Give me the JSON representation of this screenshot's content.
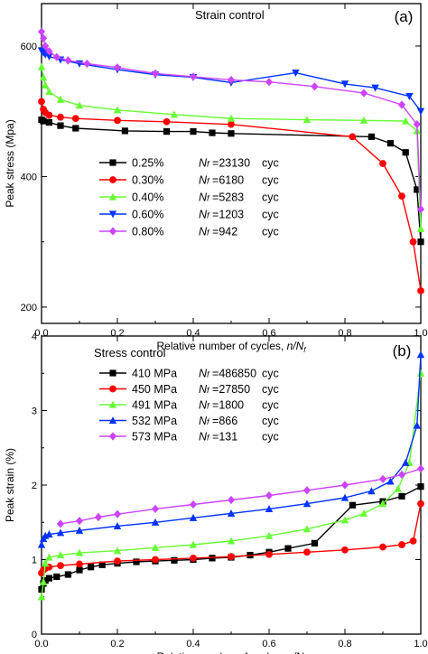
{
  "chart_data": [
    {
      "type": "line",
      "panel_label": "(a)",
      "title": "Strain control",
      "xlabel": "Relative number of cycles, n/N_f",
      "xlabel_main": "Relative number of cycles, ",
      "xlabel_italic": "n/N",
      "xlabel_sub": "f",
      "ylabel": "Peak stress (Mpa)",
      "xlim": [
        0,
        1.0
      ],
      "ylim": [
        175,
        665
      ],
      "x_ticks": [
        0.0,
        0.2,
        0.4,
        0.6,
        0.8,
        1.0
      ],
      "x_tick_labels": [
        "0.0",
        "0.2",
        "0.4",
        "0.6",
        "0.8",
        "1.0"
      ],
      "y_ticks": [
        200,
        400,
        600
      ],
      "y_tick_labels": [
        "200",
        "400",
        "600"
      ],
      "grid": false,
      "legend_position": "bottom-left",
      "series": [
        {
          "name": "0.25%",
          "nf_label": "Nf",
          "nf_value": "=23130",
          "unit": "cyc",
          "color": "#000000",
          "marker": "square",
          "x": [
            0.0,
            0.005,
            0.02,
            0.05,
            0.09,
            0.22,
            0.33,
            0.4,
            0.45,
            0.5,
            0.87,
            0.92,
            0.96,
            0.99,
            1.0
          ],
          "y": [
            487,
            485,
            483,
            478,
            474,
            470,
            469,
            469,
            467,
            466,
            461,
            451,
            437,
            380,
            300
          ]
        },
        {
          "name": "0.30%",
          "nf_label": "Nf",
          "nf_value": "=6180",
          "unit": "cyc",
          "color": "#ff0000",
          "marker": "circle",
          "x": [
            0.0,
            0.005,
            0.01,
            0.02,
            0.05,
            0.09,
            0.2,
            0.33,
            0.5,
            0.82,
            0.9,
            0.95,
            0.98,
            1.0
          ],
          "y": [
            515,
            503,
            498,
            494,
            491,
            489,
            486,
            484,
            480,
            461,
            420,
            370,
            300,
            225
          ]
        },
        {
          "name": "0.40%",
          "nf_label": "Nf",
          "nf_value": "=5283",
          "unit": "cyc",
          "color": "#66ff33",
          "marker": "triangle-up",
          "x": [
            0.0,
            0.005,
            0.01,
            0.02,
            0.05,
            0.1,
            0.2,
            0.35,
            0.5,
            0.7,
            0.85,
            0.96,
            0.99,
            1.0
          ],
          "y": [
            568,
            552,
            540,
            530,
            518,
            509,
            502,
            495,
            489,
            487,
            486,
            485,
            470,
            320
          ]
        },
        {
          "name": "0.60%",
          "nf_label": "Nf",
          "nf_value": "=1203",
          "unit": "cyc",
          "color": "#0033ff",
          "marker": "triangle-down",
          "x": [
            0.0,
            0.005,
            0.01,
            0.02,
            0.05,
            0.1,
            0.2,
            0.3,
            0.4,
            0.5,
            0.67,
            0.8,
            0.88,
            0.97,
            1.0
          ],
          "y": [
            593,
            590,
            587,
            584,
            579,
            573,
            564,
            556,
            552,
            544,
            559,
            542,
            536,
            523,
            500
          ]
        },
        {
          "name": "0.80%",
          "nf_label": "Nf",
          "nf_value": "=942",
          "unit": "cyc",
          "color": "#cc44ff",
          "marker": "diamond",
          "x": [
            0.0,
            0.005,
            0.01,
            0.02,
            0.04,
            0.07,
            0.12,
            0.2,
            0.3,
            0.4,
            0.5,
            0.6,
            0.72,
            0.85,
            0.95,
            0.99,
            1.0
          ],
          "y": [
            622,
            612,
            600,
            592,
            583,
            578,
            573,
            567,
            558,
            553,
            548,
            545,
            538,
            528,
            510,
            480,
            350
          ]
        }
      ]
    },
    {
      "type": "line",
      "panel_label": "(b)",
      "title": "Stress control",
      "xlabel": "Relative number of cycles, n/N_f",
      "xlabel_main": "Relative number of cycles, ",
      "xlabel_italic": "n/N",
      "xlabel_sub": "f",
      "ylabel": "Peak strain (%)",
      "xlim": [
        0,
        1.0
      ],
      "ylim": [
        0,
        4
      ],
      "x_ticks": [
        0.0,
        0.2,
        0.4,
        0.6,
        0.8,
        1.0
      ],
      "x_tick_labels": [
        "0.0",
        "0.2",
        "0.4",
        "0.6",
        "0.8",
        "1.0"
      ],
      "y_ticks": [
        0,
        1,
        2,
        3,
        4
      ],
      "y_tick_labels": [
        "0",
        "1",
        "2",
        "3",
        "4"
      ],
      "grid": false,
      "legend_position": "top-left",
      "series": [
        {
          "name": "410 MPa",
          "nf_label": "Nf",
          "nf_value": "=486850",
          "unit": "cyc",
          "color": "#000000",
          "marker": "square",
          "x": [
            0.0,
            0.005,
            0.01,
            0.02,
            0.04,
            0.07,
            0.1,
            0.13,
            0.16,
            0.2,
            0.25,
            0.3,
            0.35,
            0.4,
            0.45,
            0.5,
            0.55,
            0.6,
            0.65,
            0.72,
            0.82,
            0.9,
            0.95,
            1.0
          ],
          "y": [
            0.6,
            0.68,
            0.72,
            0.75,
            0.77,
            0.8,
            0.86,
            0.9,
            0.93,
            0.95,
            0.97,
            0.98,
            0.99,
            1.0,
            1.02,
            1.03,
            1.06,
            1.1,
            1.15,
            1.22,
            1.73,
            1.78,
            1.85,
            1.98
          ]
        },
        {
          "name": "450 MPa",
          "nf_label": "Nf",
          "nf_value": "=27850",
          "unit": "cyc",
          "color": "#ff0000",
          "marker": "circle",
          "x": [
            0.0,
            0.005,
            0.01,
            0.02,
            0.05,
            0.1,
            0.2,
            0.3,
            0.4,
            0.5,
            0.6,
            0.7,
            0.8,
            0.9,
            0.95,
            0.98,
            1.0
          ],
          "y": [
            0.82,
            0.86,
            0.88,
            0.9,
            0.92,
            0.94,
            0.98,
            1.0,
            1.02,
            1.04,
            1.07,
            1.1,
            1.13,
            1.17,
            1.2,
            1.25,
            1.75
          ]
        },
        {
          "name": "491 MPa",
          "nf_label": "Nf",
          "nf_value": "=1800",
          "unit": "cyc",
          "color": "#66ff33",
          "marker": "triangle-up",
          "x": [
            0.0,
            0.005,
            0.01,
            0.02,
            0.05,
            0.1,
            0.2,
            0.3,
            0.4,
            0.5,
            0.6,
            0.7,
            0.8,
            0.85,
            0.9,
            0.94,
            0.97,
            1.0
          ],
          "y": [
            0.5,
            0.7,
            0.95,
            1.03,
            1.06,
            1.09,
            1.12,
            1.16,
            1.2,
            1.25,
            1.32,
            1.41,
            1.53,
            1.62,
            1.75,
            1.95,
            2.3,
            3.5
          ]
        },
        {
          "name": "532 MPa",
          "nf_label": "Nf",
          "nf_value": "=866",
          "unit": "cyc",
          "color": "#0033ff",
          "marker": "triangle-up",
          "x": [
            0.0,
            0.005,
            0.01,
            0.02,
            0.05,
            0.1,
            0.2,
            0.3,
            0.4,
            0.5,
            0.6,
            0.7,
            0.8,
            0.87,
            0.92,
            0.96,
            0.99,
            1.0
          ],
          "y": [
            1.2,
            1.28,
            1.32,
            1.34,
            1.36,
            1.39,
            1.45,
            1.5,
            1.56,
            1.62,
            1.68,
            1.75,
            1.83,
            1.92,
            2.05,
            2.3,
            2.8,
            3.75
          ]
        },
        {
          "name": "573 MPa",
          "nf_label": "Nf",
          "nf_value": "=131",
          "unit": "cyc",
          "color": "#cc44ff",
          "marker": "diamond",
          "x": [
            0.05,
            0.1,
            0.15,
            0.2,
            0.3,
            0.4,
            0.5,
            0.6,
            0.7,
            0.8,
            0.9,
            0.95,
            1.0
          ],
          "y": [
            1.48,
            1.52,
            1.57,
            1.61,
            1.68,
            1.74,
            1.8,
            1.86,
            1.93,
            2.0,
            2.08,
            2.14,
            2.22
          ]
        }
      ]
    }
  ]
}
